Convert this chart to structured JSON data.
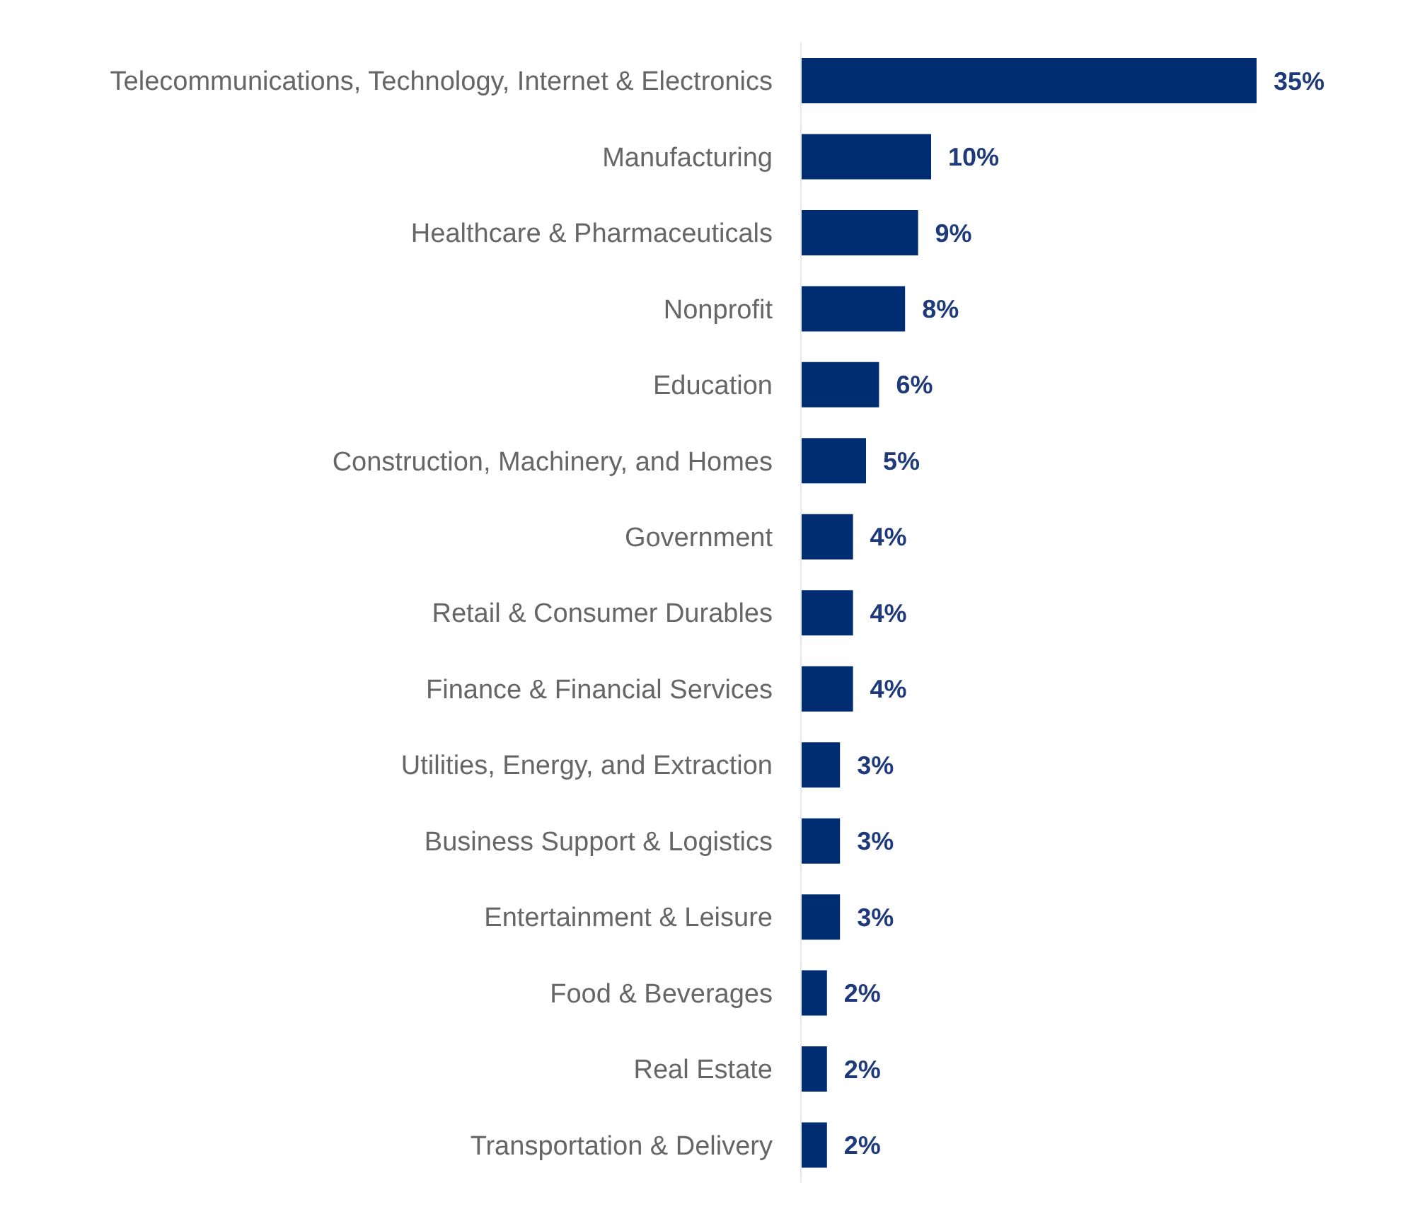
{
  "chart_data": {
    "type": "bar",
    "orientation": "horizontal",
    "tick_labels": "y",
    "data_labels": false,
    "categories": [
      "Telecommunications, Technology, Internet & Electronics",
      "Manufacturing",
      "Healthcare & Pharmaceuticals",
      "Nonprofit",
      "Education",
      "Construction, Machinery, and Homes",
      "Government",
      "Retail & Consumer Durables",
      "Finance & Financial Services",
      "Utilities, Energy, and Extraction",
      "Business Support & Logistics",
      "Entertainment & Leisure",
      "Food & Beverages",
      "Real Estate",
      "Transportation & Delivery"
    ],
    "values": [
      35,
      10,
      9,
      8,
      6,
      5,
      4,
      4,
      4,
      3,
      3,
      3,
      2,
      2,
      2
    ],
    "value_labels": [
      "35%",
      "10%",
      "9%",
      "8%",
      "6%",
      "5%",
      "4%",
      "4%",
      "4%",
      "3%",
      "3%",
      "3%",
      "2%",
      "2%",
      "2%"
    ],
    "color": "#002d72"
  }
}
